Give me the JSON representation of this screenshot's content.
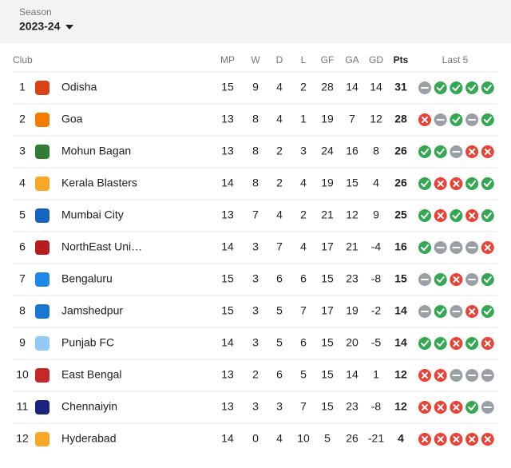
{
  "season_selector": {
    "label": "Season",
    "value": "2023-24"
  },
  "table": {
    "columns": [
      "Club",
      "MP",
      "W",
      "D",
      "L",
      "GF",
      "GA",
      "GD",
      "Pts",
      "Last 5"
    ],
    "rows": [
      {
        "rank": 1,
        "club": "Odisha",
        "mp": 15,
        "w": 9,
        "d": 4,
        "l": 2,
        "gf": 28,
        "ga": 14,
        "gd": 14,
        "pts": 31,
        "last5": [
          "D",
          "W",
          "W",
          "W",
          "W"
        ]
      },
      {
        "rank": 2,
        "club": "Goa",
        "mp": 13,
        "w": 8,
        "d": 4,
        "l": 1,
        "gf": 19,
        "ga": 7,
        "gd": 12,
        "pts": 28,
        "last5": [
          "L",
          "D",
          "W",
          "D",
          "W"
        ]
      },
      {
        "rank": 3,
        "club": "Mohun Bagan",
        "mp": 13,
        "w": 8,
        "d": 2,
        "l": 3,
        "gf": 24,
        "ga": 16,
        "gd": 8,
        "pts": 26,
        "last5": [
          "W",
          "W",
          "D",
          "L",
          "L"
        ]
      },
      {
        "rank": 4,
        "club": "Kerala Blasters",
        "mp": 14,
        "w": 8,
        "d": 2,
        "l": 4,
        "gf": 19,
        "ga": 15,
        "gd": 4,
        "pts": 26,
        "last5": [
          "W",
          "L",
          "L",
          "W",
          "W"
        ]
      },
      {
        "rank": 5,
        "club": "Mumbai City",
        "mp": 13,
        "w": 7,
        "d": 4,
        "l": 2,
        "gf": 21,
        "ga": 12,
        "gd": 9,
        "pts": 25,
        "last5": [
          "W",
          "L",
          "W",
          "L",
          "W"
        ]
      },
      {
        "rank": 6,
        "club": "NorthEast Uni…",
        "mp": 14,
        "w": 3,
        "d": 7,
        "l": 4,
        "gf": 17,
        "ga": 21,
        "gd": -4,
        "pts": 16,
        "last5": [
          "W",
          "D",
          "D",
          "D",
          "L"
        ]
      },
      {
        "rank": 7,
        "club": "Bengaluru",
        "mp": 15,
        "w": 3,
        "d": 6,
        "l": 6,
        "gf": 15,
        "ga": 23,
        "gd": -8,
        "pts": 15,
        "last5": [
          "D",
          "W",
          "L",
          "D",
          "W"
        ]
      },
      {
        "rank": 8,
        "club": "Jamshedpur",
        "mp": 15,
        "w": 3,
        "d": 5,
        "l": 7,
        "gf": 17,
        "ga": 19,
        "gd": -2,
        "pts": 14,
        "last5": [
          "D",
          "W",
          "D",
          "L",
          "W"
        ]
      },
      {
        "rank": 9,
        "club": "Punjab FC",
        "mp": 14,
        "w": 3,
        "d": 5,
        "l": 6,
        "gf": 15,
        "ga": 20,
        "gd": -5,
        "pts": 14,
        "last5": [
          "W",
          "W",
          "L",
          "W",
          "L"
        ]
      },
      {
        "rank": 10,
        "club": "East Bengal",
        "mp": 13,
        "w": 2,
        "d": 6,
        "l": 5,
        "gf": 15,
        "ga": 14,
        "gd": 1,
        "pts": 12,
        "last5": [
          "L",
          "L",
          "D",
          "D",
          "D"
        ]
      },
      {
        "rank": 11,
        "club": "Chennaiyin",
        "mp": 13,
        "w": 3,
        "d": 3,
        "l": 7,
        "gf": 15,
        "ga": 23,
        "gd": -8,
        "pts": 12,
        "last5": [
          "L",
          "L",
          "L",
          "W",
          "D"
        ]
      },
      {
        "rank": 12,
        "club": "Hyderabad",
        "mp": 14,
        "w": 0,
        "d": 4,
        "l": 10,
        "gf": 5,
        "ga": 26,
        "gd": -21,
        "pts": 4,
        "last5": [
          "L",
          "L",
          "L",
          "L",
          "L"
        ]
      }
    ]
  }
}
